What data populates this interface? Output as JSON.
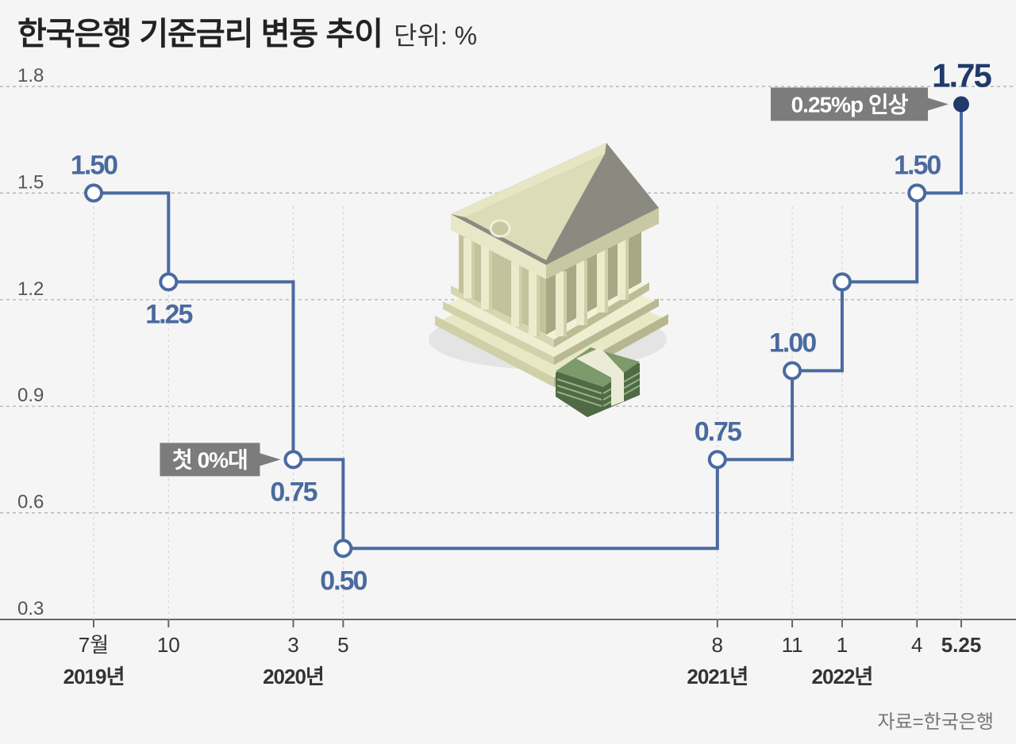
{
  "title": "한국은행 기준금리 변동 추이",
  "unit": "단위: %",
  "source": "자료=한국은행",
  "colors": {
    "line": "#4a6aa0",
    "latest": "#1f3a6b",
    "callout": "#7c7c7c",
    "grid": "#aaaaaa",
    "text": "#333333"
  },
  "chart_data": {
    "type": "line",
    "step": true,
    "title": "한국은행 기준금리 변동 추이",
    "ylim": [
      0.3,
      1.8
    ],
    "yticks": [
      "1.8",
      "1.5",
      "1.2",
      "0.9",
      "0.6",
      "0.3"
    ],
    "grid": true,
    "points": [
      {
        "date": "2019-07",
        "value": 1.5,
        "label": "1.50",
        "label_pos": "above"
      },
      {
        "date": "2019-10",
        "value": 1.25,
        "label": "1.25",
        "label_pos": "below"
      },
      {
        "date": "2020-03",
        "value": 0.75,
        "label": "0.75",
        "label_pos": "below"
      },
      {
        "date": "2020-05",
        "value": 0.5,
        "label": "0.50",
        "label_pos": "below"
      },
      {
        "date": "2021-08",
        "value": 0.75,
        "label": "0.75",
        "label_pos": "above"
      },
      {
        "date": "2021-11",
        "value": 1.0,
        "label": "1.00",
        "label_pos": "above"
      },
      {
        "date": "2022-01",
        "value": 1.25,
        "label": "",
        "label_pos": "none"
      },
      {
        "date": "2022-04",
        "value": 1.5,
        "label": "1.50",
        "label_pos": "above"
      },
      {
        "date": "2022-05-25",
        "value": 1.75,
        "label": "1.75",
        "label_pos": "above"
      }
    ],
    "x_ticks": [
      {
        "date": "2019-07",
        "label": "7월",
        "bold": false
      },
      {
        "date": "2019-10",
        "label": "10",
        "bold": false
      },
      {
        "date": "2020-03",
        "label": "3",
        "bold": false
      },
      {
        "date": "2020-05",
        "label": "5",
        "bold": false
      },
      {
        "date": "2021-08",
        "label": "8",
        "bold": false
      },
      {
        "date": "2021-11",
        "label": "11",
        "bold": false
      },
      {
        "date": "2022-01",
        "label": "1",
        "bold": false
      },
      {
        "date": "2022-04",
        "label": "4",
        "bold": false
      },
      {
        "date": "2022-05-25",
        "label": "5.25",
        "bold": true
      }
    ],
    "year_labels": [
      {
        "date": "2019-07",
        "label": "2019년"
      },
      {
        "date": "2020-03",
        "label": "2020년"
      },
      {
        "date": "2021-08",
        "label": "2021년"
      },
      {
        "date": "2022-01",
        "label": "2022년"
      }
    ],
    "annotations": [
      {
        "date": "2020-03",
        "text": "첫 0%대",
        "side": "left"
      },
      {
        "date": "2022-05-25",
        "text": "0.25%p 인상",
        "side": "left"
      }
    ]
  }
}
